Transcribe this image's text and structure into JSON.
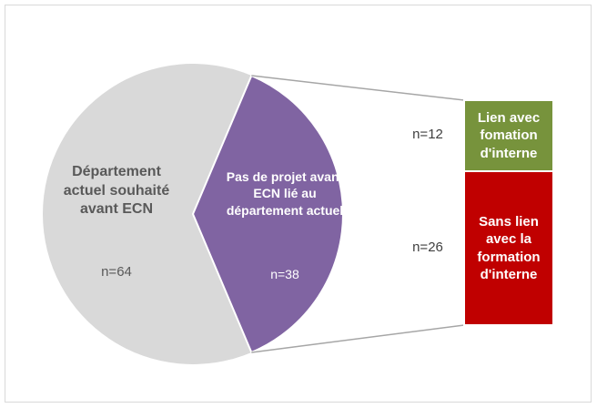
{
  "chart_data": {
    "type": "pie",
    "categories": [
      "Département actuel souhaité avant ECN",
      "Pas de projet avant ECN lié au département actuel"
    ],
    "values": [
      64,
      38
    ],
    "value_labels": [
      "n=64",
      "n=38"
    ],
    "colors": [
      "#d9d9d9",
      "#8064a2"
    ],
    "breakdown": {
      "type": "bar",
      "categories": [
        "Lien avec fomation d'interne",
        "Sans lien avec la formation d'interne"
      ],
      "values": [
        12,
        26
      ],
      "value_labels": [
        "n=12",
        "n=26"
      ],
      "colors": [
        "#77933c",
        "#c00000"
      ]
    }
  }
}
